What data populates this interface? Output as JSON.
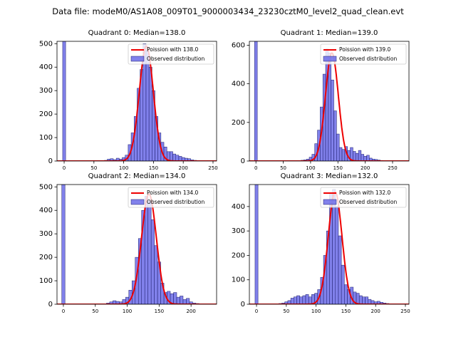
{
  "suptitle": "Data file: modeM0/AS1A08_009T01_9000003434_23230cztM0_level2_quad_clean.evt",
  "colors": {
    "bar_fill": "#6b6be8",
    "bar_edge": "#1d1d6a",
    "fit": "#ee0000"
  },
  "chart_data": [
    {
      "type": "bar",
      "title": "Quadrant 0: Median=138.0",
      "legend": [
        "Poission with 138.0",
        "Observed distribution"
      ],
      "legend_loc": "top-right",
      "xlim": [
        -12,
        256
      ],
      "ylim": [
        0,
        510
      ],
      "xticks": [
        0,
        50,
        100,
        150,
        200,
        250
      ],
      "yticks": [
        0,
        100,
        200,
        300,
        400,
        500
      ],
      "bin_width": 5,
      "hist": [
        [
          0,
          510
        ],
        [
          70,
          3
        ],
        [
          75,
          8
        ],
        [
          80,
          10
        ],
        [
          85,
          6
        ],
        [
          90,
          12
        ],
        [
          95,
          8
        ],
        [
          100,
          15
        ],
        [
          105,
          25
        ],
        [
          110,
          70
        ],
        [
          115,
          120
        ],
        [
          120,
          190
        ],
        [
          125,
          310
        ],
        [
          130,
          390
        ],
        [
          135,
          500
        ],
        [
          140,
          470
        ],
        [
          145,
          400
        ],
        [
          150,
          300
        ],
        [
          155,
          190
        ],
        [
          160,
          120
        ],
        [
          165,
          80
        ],
        [
          170,
          60
        ],
        [
          175,
          40
        ],
        [
          180,
          40
        ],
        [
          185,
          30
        ],
        [
          190,
          25
        ],
        [
          195,
          20
        ],
        [
          200,
          15
        ],
        [
          205,
          12
        ],
        [
          210,
          10
        ],
        [
          215,
          5
        ],
        [
          220,
          3
        ],
        [
          225,
          2
        ],
        [
          230,
          1
        ],
        [
          235,
          1
        ]
      ],
      "poisson_mean": 138.0,
      "poisson_amplitude": 490
    },
    {
      "type": "bar",
      "title": "Quadrant 1: Median=139.0",
      "legend": [
        "Poission with 139.0",
        "Observed distribution"
      ],
      "legend_loc": "top-right",
      "xlim": [
        -12,
        280
      ],
      "ylim": [
        0,
        620
      ],
      "xticks": [
        0,
        50,
        100,
        150,
        200,
        250
      ],
      "yticks": [
        0,
        200,
        400,
        600
      ],
      "bin_width": 5,
      "hist": [
        [
          0,
          620
        ],
        [
          80,
          2
        ],
        [
          85,
          4
        ],
        [
          90,
          6
        ],
        [
          95,
          10
        ],
        [
          100,
          20
        ],
        [
          105,
          35
        ],
        [
          110,
          90
        ],
        [
          115,
          160
        ],
        [
          120,
          280
        ],
        [
          125,
          450
        ],
        [
          130,
          580
        ],
        [
          135,
          560
        ],
        [
          140,
          420
        ],
        [
          145,
          260
        ],
        [
          150,
          140
        ],
        [
          155,
          70
        ],
        [
          160,
          60
        ],
        [
          165,
          75
        ],
        [
          170,
          55
        ],
        [
          175,
          70
        ],
        [
          180,
          50
        ],
        [
          185,
          40
        ],
        [
          190,
          55
        ],
        [
          195,
          35
        ],
        [
          200,
          25
        ],
        [
          205,
          30
        ],
        [
          210,
          15
        ],
        [
          215,
          10
        ],
        [
          220,
          8
        ],
        [
          225,
          5
        ],
        [
          230,
          3
        ],
        [
          235,
          2
        ]
      ],
      "poisson_mean": 139.0,
      "poisson_amplitude": 560
    },
    {
      "type": "bar",
      "title": "Quadrant 2: Median=134.0",
      "legend": [
        "Poission with 134.0",
        "Observed distribution"
      ],
      "legend_loc": "top-right",
      "xlim": [
        -10,
        240
      ],
      "ylim": [
        0,
        510
      ],
      "xticks": [
        0,
        50,
        100,
        150,
        200
      ],
      "yticks": [
        0,
        100,
        200,
        300,
        400,
        500
      ],
      "bin_width": 5,
      "hist": [
        [
          0,
          510
        ],
        [
          70,
          5
        ],
        [
          75,
          10
        ],
        [
          80,
          15
        ],
        [
          85,
          12
        ],
        [
          90,
          10
        ],
        [
          95,
          20
        ],
        [
          100,
          30
        ],
        [
          105,
          60
        ],
        [
          110,
          100
        ],
        [
          115,
          200
        ],
        [
          120,
          280
        ],
        [
          125,
          400
        ],
        [
          130,
          460
        ],
        [
          135,
          440
        ],
        [
          140,
          360
        ],
        [
          145,
          250
        ],
        [
          150,
          180
        ],
        [
          155,
          90
        ],
        [
          160,
          50
        ],
        [
          165,
          55
        ],
        [
          170,
          45
        ],
        [
          175,
          50
        ],
        [
          180,
          30
        ],
        [
          185,
          35
        ],
        [
          190,
          20
        ],
        [
          195,
          25
        ],
        [
          200,
          10
        ],
        [
          205,
          5
        ],
        [
          210,
          3
        ],
        [
          215,
          2
        ],
        [
          220,
          1
        ]
      ],
      "poisson_mean": 134.0,
      "poisson_amplitude": 470
    },
    {
      "type": "bar",
      "title": "Quadrant 3: Median=132.0",
      "legend": [
        "Poission with 132.0",
        "Observed distribution"
      ],
      "legend_loc": "top-right",
      "xlim": [
        -12,
        256
      ],
      "ylim": [
        0,
        490
      ],
      "xticks": [
        0,
        50,
        100,
        150,
        200,
        250
      ],
      "yticks": [
        0,
        100,
        200,
        300,
        400
      ],
      "bin_width": 5,
      "hist": [
        [
          0,
          490
        ],
        [
          40,
          3
        ],
        [
          45,
          5
        ],
        [
          50,
          10
        ],
        [
          55,
          15
        ],
        [
          60,
          25
        ],
        [
          65,
          30
        ],
        [
          70,
          35
        ],
        [
          75,
          30
        ],
        [
          80,
          35
        ],
        [
          85,
          40
        ],
        [
          90,
          30
        ],
        [
          95,
          40
        ],
        [
          100,
          45
        ],
        [
          105,
          60
        ],
        [
          110,
          110
        ],
        [
          115,
          200
        ],
        [
          120,
          300
        ],
        [
          125,
          450
        ],
        [
          130,
          470
        ],
        [
          135,
          400
        ],
        [
          140,
          280
        ],
        [
          145,
          160
        ],
        [
          150,
          80
        ],
        [
          155,
          60
        ],
        [
          160,
          70
        ],
        [
          165,
          50
        ],
        [
          170,
          45
        ],
        [
          175,
          35
        ],
        [
          180,
          30
        ],
        [
          185,
          30
        ],
        [
          190,
          20
        ],
        [
          195,
          15
        ],
        [
          200,
          10
        ],
        [
          205,
          12
        ],
        [
          210,
          8
        ],
        [
          215,
          5
        ],
        [
          220,
          3
        ],
        [
          225,
          2
        ],
        [
          230,
          1
        ]
      ],
      "poisson_mean": 132.0,
      "poisson_amplitude": 460
    }
  ]
}
